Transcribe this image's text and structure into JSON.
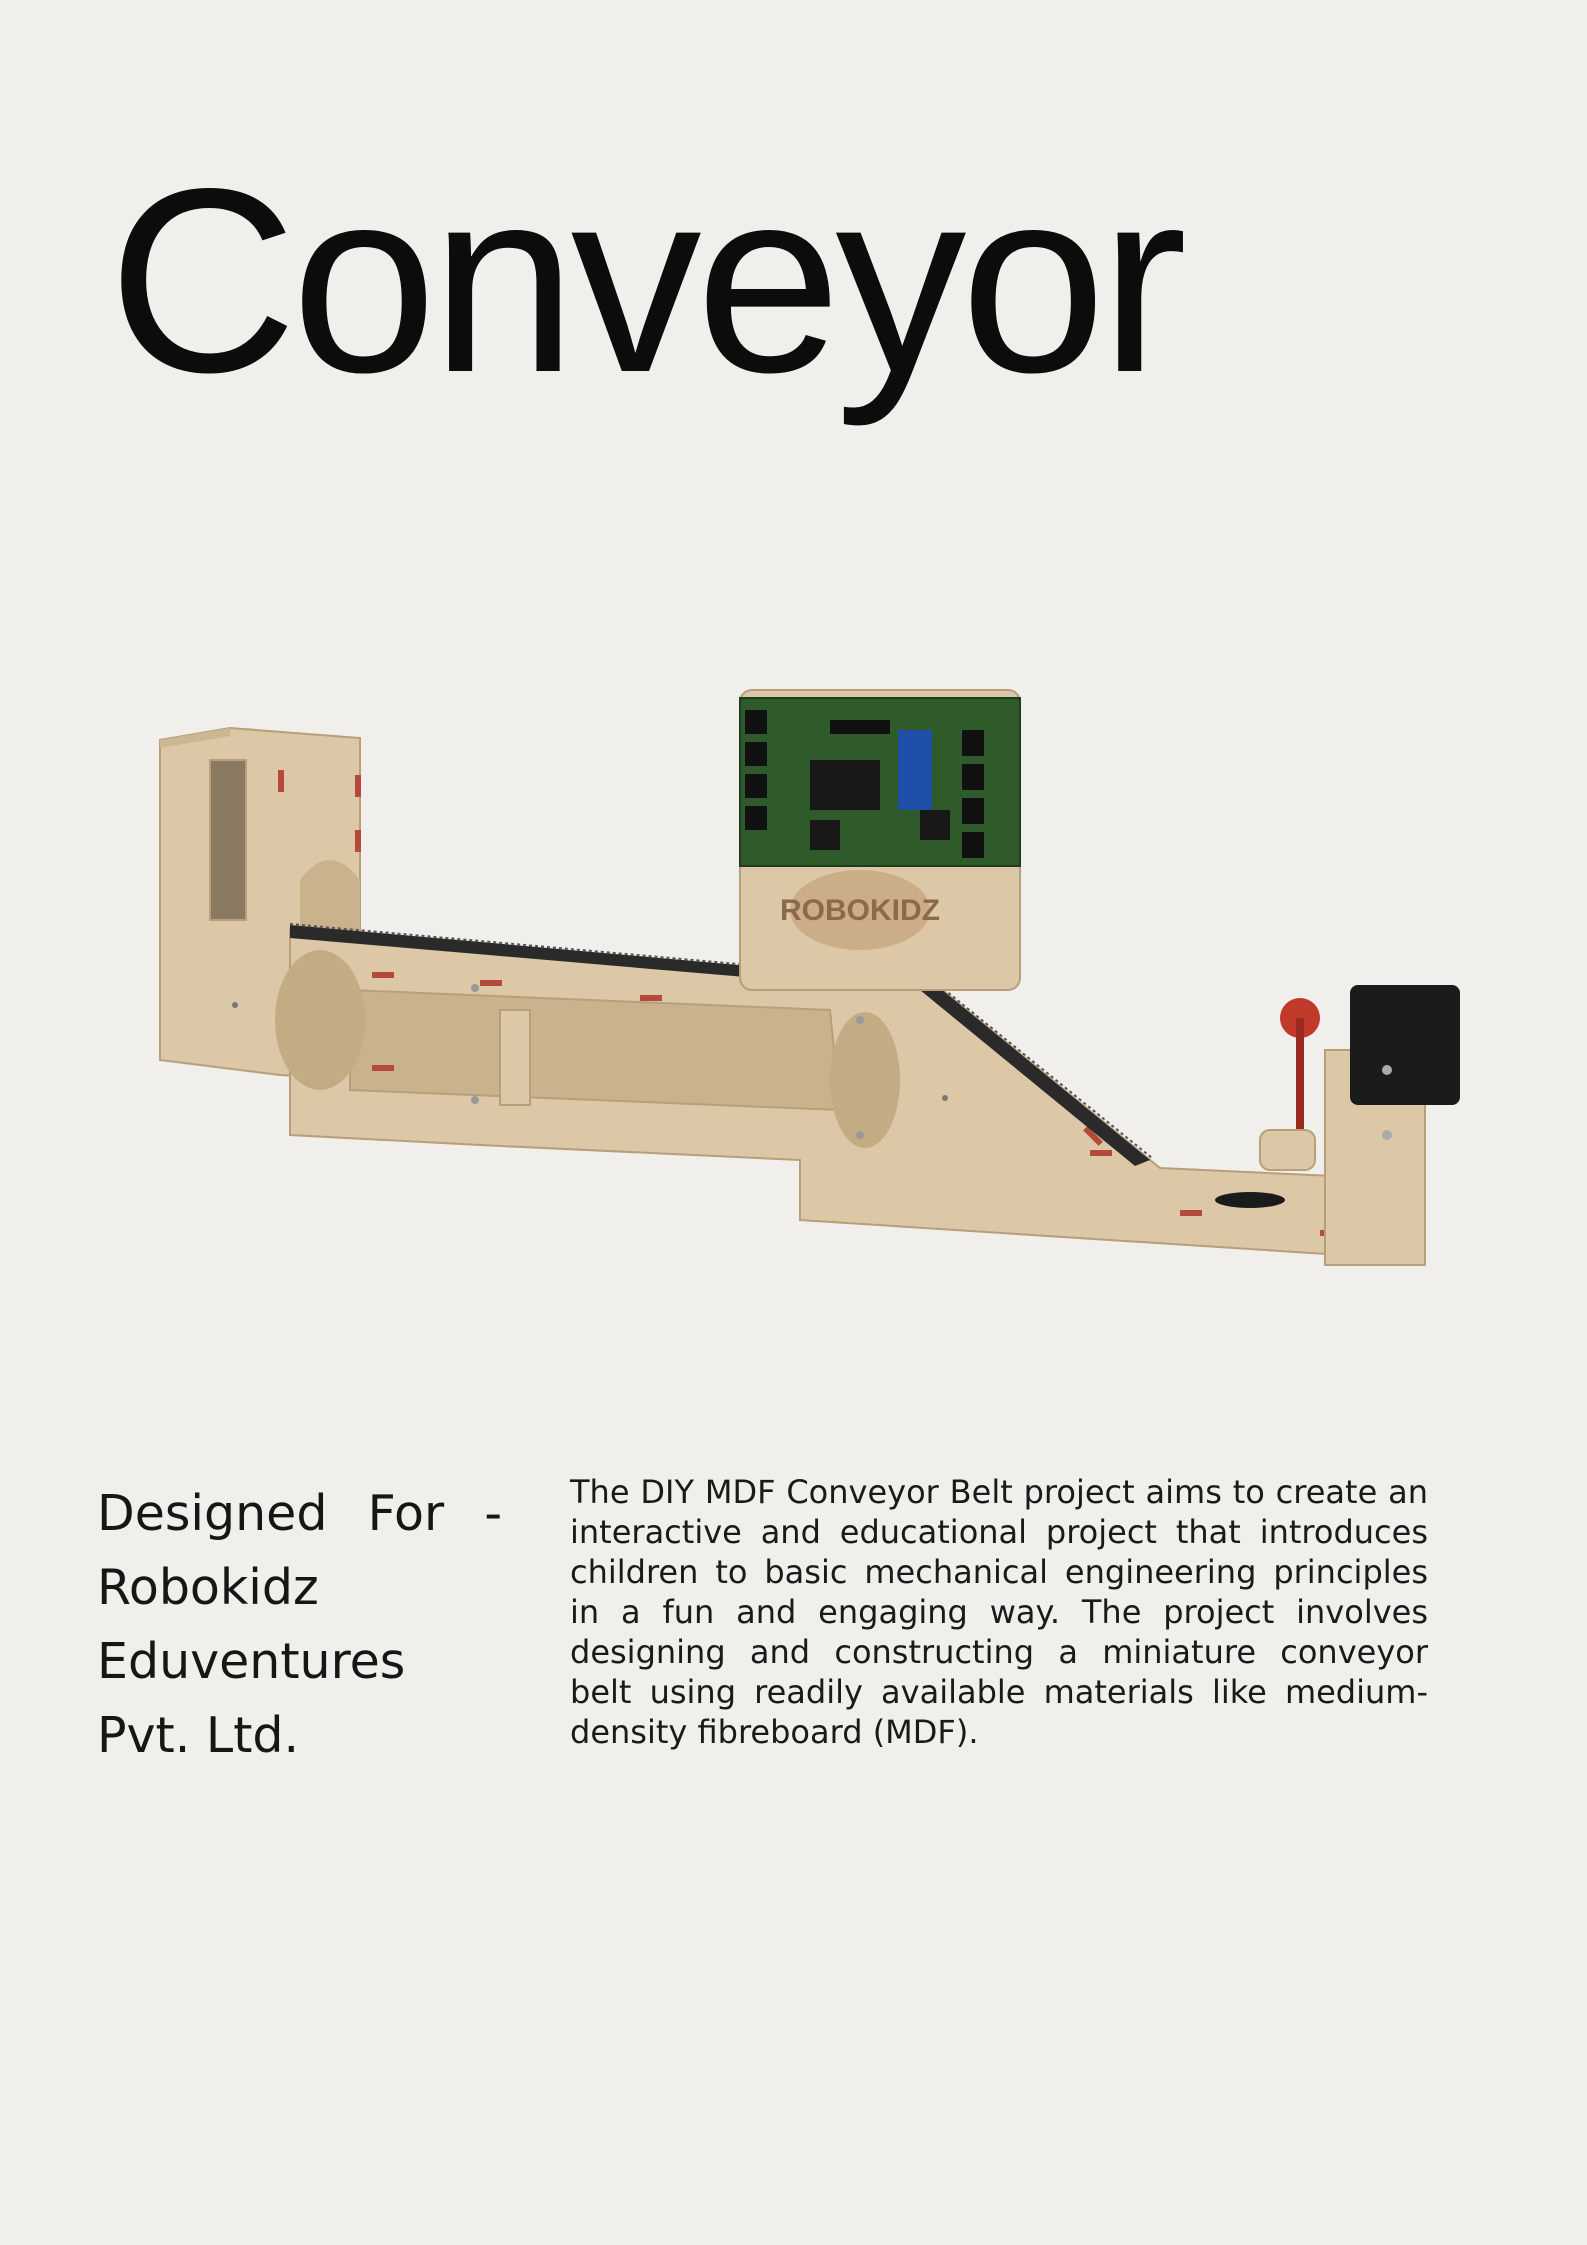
{
  "page": {
    "title": "Conveyor",
    "designed_for": "Designed For - Robokidz Eduventures Pvt. Ltd.",
    "description": "The DIY MDF Conveyor Belt project aims to create an interactive and educational project that introduces children to basic mechanical engineering principles in a fun and engaging way. The project involves designing and constructing a miniature conveyor belt using readily available materials like medium-density fibreboard (MDF).",
    "board_logo_text": "ROBOKIDZ"
  },
  "colors": {
    "background": "#f0efeb",
    "mdf": "#dcc8a6",
    "mdf_dark": "#b89f7a",
    "pcb": "#2f5a2a",
    "belt": "#2a2a2a",
    "motor": "#1b1b1b",
    "accent_red": "#c0392b",
    "arduino": "#1f4fa8"
  }
}
